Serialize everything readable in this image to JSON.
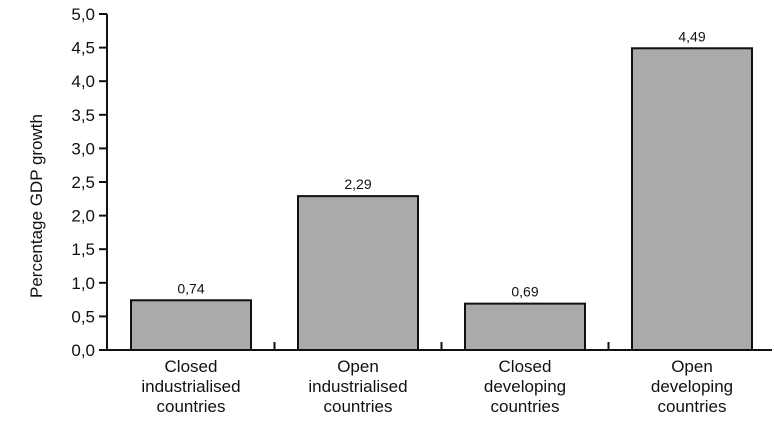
{
  "chart_data": {
    "type": "bar",
    "categories": [
      [
        "Closed",
        "industrialised",
        "countries"
      ],
      [
        "Open",
        "industrialised",
        "countries"
      ],
      [
        "Closed",
        "developing",
        "countries"
      ],
      [
        "Open",
        "developing",
        "countries"
      ]
    ],
    "values": [
      0.74,
      2.29,
      0.69,
      4.49
    ],
    "data_labels": [
      "0,74",
      "2,29",
      "0,69",
      "4,49"
    ],
    "ylabel": "Percentage GDP growth",
    "ylim": [
      0,
      5
    ],
    "yticks": [
      0,
      0.5,
      1,
      1.5,
      2,
      2.5,
      3,
      3.5,
      4,
      4.5,
      5
    ],
    "ytick_labels": [
      "0,0",
      "0,5",
      "1,0",
      "1,5",
      "2,0",
      "2,5",
      "3,0",
      "3,5",
      "4,0",
      "4,5",
      "5,0"
    ],
    "grid": false,
    "legend": "none",
    "colors": {
      "bar_fill": "#aaaaaa",
      "bar_stroke": "#111111",
      "axis": "#111111"
    }
  }
}
